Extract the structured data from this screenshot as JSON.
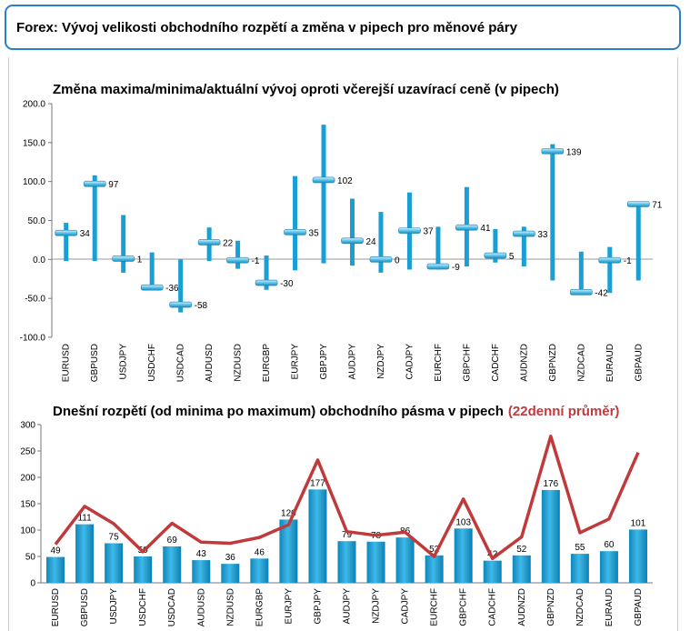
{
  "header": {
    "title": "Forex: Vývoj velikosti obchodního rozpětí a změna v pipech pro měnové páry"
  },
  "chart_data": [
    {
      "type": "range",
      "title": "Změna maxima/minima/aktuální vývoj oproti včerejší uzavírací ceně (v pipech)",
      "categories": [
        "EURUSD",
        "GBPUSD",
        "USDJPY",
        "USDCHF",
        "USDCAD",
        "AUDUSD",
        "NZDUSD",
        "EURGBP",
        "EURJPY",
        "GBPJPY",
        "AUDJPY",
        "NZDJPY",
        "CADJPY",
        "EURCHF",
        "GBPCHF",
        "CADCHF",
        "AUDNZD",
        "GBPNZD",
        "NZDCAD",
        "EURAUD",
        "GBPAUD"
      ],
      "high": [
        47,
        108,
        57,
        9,
        0,
        41,
        24,
        5,
        107,
        173,
        78,
        61,
        86,
        42,
        93,
        39,
        42,
        148,
        10,
        16,
        74
      ],
      "low": [
        -2,
        -2,
        -17,
        -37,
        -68,
        -2,
        -12,
        -39,
        -14,
        -5,
        -8,
        -17,
        -13,
        -13,
        -9,
        -4,
        -9,
        -27,
        -43,
        -43,
        -27
      ],
      "current": [
        34,
        97,
        1,
        -36,
        -58,
        22,
        -1,
        -30,
        35,
        102,
        24,
        0,
        37,
        -9,
        41,
        5,
        33,
        139,
        -42,
        -1,
        71
      ],
      "current_labels": [
        "34",
        "97",
        "1",
        "-36",
        "-58",
        "22",
        "-1",
        "-30",
        "35",
        "102",
        "24",
        "0",
        "37",
        "-9",
        "41",
        "5",
        "33",
        "139",
        "-42",
        "-1",
        "71"
      ],
      "ylim": [
        -100,
        200
      ],
      "yticks": [
        "200.0",
        "150.0",
        "100.0",
        "50.0",
        "0.0",
        "-50.0",
        "-100.0"
      ],
      "grid": false,
      "colors": {
        "range": "#1a9fd4",
        "marker": "#8fd3ee"
      }
    },
    {
      "type": "bar+line",
      "title": "Dnešní rozpětí (od minima po maximum) obchodního pásma v pipech",
      "title_highlight": "(22denní průměr)",
      "categories": [
        "EURUSD",
        "GBPUSD",
        "USDJPY",
        "USDCHF",
        "USDCAD",
        "AUDUSD",
        "NZDUSD",
        "EURGBP",
        "EURJPY",
        "GBPJPY",
        "AUDJPY",
        "NZDJPY",
        "CADJPY",
        "EURCHF",
        "GBPCHF",
        "CADCHF",
        "AUDNZD",
        "GBPNZD",
        "NZDCAD",
        "EURAUD",
        "GBPAUD"
      ],
      "values": [
        49,
        111,
        75,
        50,
        69,
        43,
        36,
        46,
        120,
        177,
        79,
        78,
        86,
        52,
        103,
        42,
        52,
        176,
        55,
        60,
        101
      ],
      "value_labels": [
        "49",
        "111",
        "75",
        "50",
        "69",
        "43",
        "36",
        "46",
        "120",
        "177",
        "79",
        "78",
        "86",
        "52",
        "103",
        "42",
        "52",
        "176",
        "55",
        "60",
        "101"
      ],
      "avg_22d": [
        73,
        145,
        112,
        59,
        113,
        77,
        75,
        86,
        110,
        233,
        97,
        90,
        96,
        50,
        159,
        46,
        87,
        278,
        95,
        121,
        247
      ],
      "ylim": [
        0,
        300
      ],
      "yticks": [
        "300",
        "250",
        "200",
        "150",
        "100",
        "50",
        "0"
      ],
      "grid": false,
      "colors": {
        "bar": "#1a9fd4",
        "line": "#c0393b",
        "highlight_text": "#c0393b"
      }
    }
  ]
}
